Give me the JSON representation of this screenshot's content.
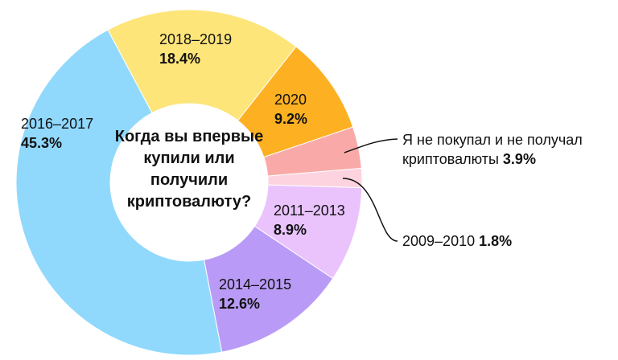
{
  "chart_data": {
    "type": "donut",
    "title": "Когда вы впервые купили или получили криптовалюту?",
    "categories": [
      "2018–2019",
      "2020",
      "Я не покупал и не получал криптовалюты",
      "2009–2010",
      "2011–2013",
      "2014–2015",
      "2016–2017"
    ],
    "values": [
      18.4,
      9.2,
      3.9,
      1.8,
      8.9,
      12.6,
      45.3
    ],
    "value_labels": [
      "18.4%",
      "9.2%",
      "3.9%",
      "1.8%",
      "8.9%",
      "12.6%",
      "45.3%"
    ],
    "colors": [
      "#fde57a",
      "#fdb022",
      "#f9aaa8",
      "#fdd3df",
      "#eac3fd",
      "#b99bf7",
      "#90d9fd"
    ]
  }
}
